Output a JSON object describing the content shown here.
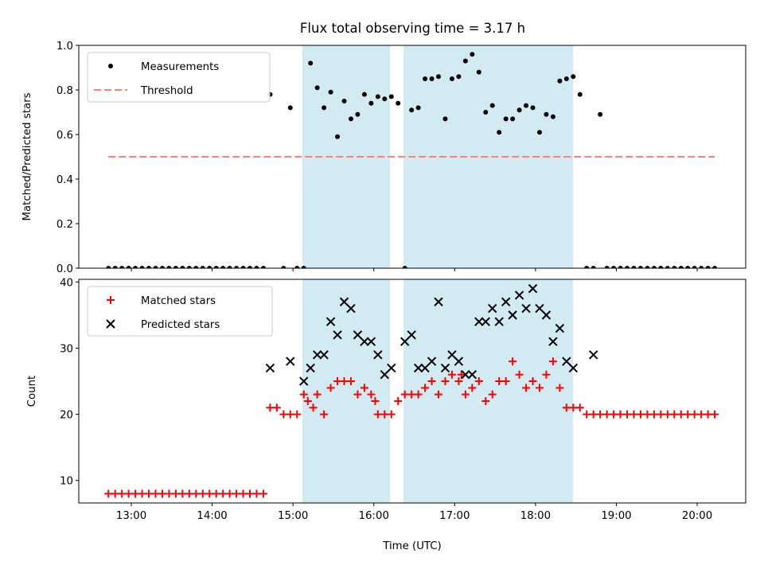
{
  "figure_title": "Flux total observing time = 3.17 h",
  "colors": {
    "shade": "#add8e6",
    "matched": "#ff0000",
    "predicted": "#000000",
    "threshold": "#ff7f7f",
    "measurement": "#000000"
  },
  "chart_data": [
    {
      "type": "scatter",
      "title": "Flux total observing time = 3.17 h",
      "xlabel": "",
      "ylabel": "Matched/Predicted stars",
      "xlim": [
        "12:21",
        "20:36"
      ],
      "ylim": [
        0.0,
        1.0
      ],
      "yticks": [
        "0.0",
        "0.2",
        "0.4",
        "0.6",
        "0.8",
        "1.0"
      ],
      "legend_location": "upper-left",
      "shaded_intervals": [
        [
          "15:07",
          "16:12"
        ],
        [
          "16:22",
          "18:28"
        ]
      ],
      "series": [
        {
          "name": "Measurements",
          "marker": "dot",
          "x": [
            "12:43",
            "12:48",
            "12:53",
            "12:58",
            "13:03",
            "13:08",
            "13:13",
            "13:18",
            "13:23",
            "13:28",
            "13:33",
            "13:38",
            "13:43",
            "13:48",
            "13:53",
            "13:58",
            "14:03",
            "14:08",
            "14:13",
            "14:18",
            "14:23",
            "14:28",
            "14:33",
            "14:38",
            "14:43",
            "14:53",
            "14:58",
            "15:03",
            "15:08",
            "15:13",
            "15:18",
            "15:23",
            "15:28",
            "15:33",
            "15:38",
            "15:43",
            "15:48",
            "15:53",
            "15:58",
            "16:03",
            "16:08",
            "16:13",
            "16:18",
            "16:23",
            "16:28",
            "16:33",
            "16:38",
            "16:43",
            "16:48",
            "16:53",
            "16:58",
            "17:03",
            "17:08",
            "17:13",
            "17:18",
            "17:23",
            "17:28",
            "17:33",
            "17:38",
            "17:43",
            "17:48",
            "17:53",
            "17:58",
            "18:03",
            "18:08",
            "18:13",
            "18:18",
            "18:23",
            "18:28",
            "18:33",
            "18:38",
            "18:43",
            "18:48",
            "18:53",
            "18:58",
            "19:03",
            "19:08",
            "19:13",
            "19:18",
            "19:23",
            "19:28",
            "19:33",
            "19:38",
            "19:43",
            "19:48",
            "19:53",
            "19:58",
            "20:03",
            "20:08",
            "20:13"
          ],
          "y": [
            0,
            0,
            0,
            0,
            0,
            0,
            0,
            0,
            0,
            0,
            0,
            0,
            0,
            0,
            0,
            0,
            0,
            0,
            0,
            0,
            0,
            0,
            0,
            0,
            0.78,
            0,
            0.72,
            0,
            0,
            0.92,
            0.81,
            0.72,
            0.79,
            0.59,
            0.75,
            0.67,
            0.69,
            0.78,
            0.74,
            0.77,
            0.76,
            0.77,
            0.74,
            0,
            0.71,
            0.72,
            0.85,
            0.85,
            0.86,
            0.67,
            0.85,
            0.86,
            0.93,
            0.96,
            0.88,
            0.7,
            0.73,
            0.61,
            0.67,
            0.67,
            0.71,
            0.73,
            0.72,
            0.61,
            0.69,
            0.68,
            0.84,
            0.85,
            0.86,
            0.78,
            0,
            0,
            0.69,
            0,
            0,
            0,
            0,
            0,
            0,
            0,
            0,
            0,
            0,
            0,
            0,
            0,
            0,
            0,
            0,
            0
          ]
        },
        {
          "name": "Threshold",
          "marker": "dashed-line",
          "x": [
            "12:43",
            "20:13"
          ],
          "y": [
            0.5,
            0.5
          ]
        }
      ]
    },
    {
      "type": "scatter",
      "title": "",
      "xlabel": "Time (UTC)",
      "ylabel": "Count",
      "xlim": [
        "12:21",
        "20:36"
      ],
      "ylim": [
        6.6,
        40.4
      ],
      "yticks": [
        "10",
        "20",
        "30",
        "40"
      ],
      "xticks": [
        "13:00",
        "14:00",
        "15:00",
        "16:00",
        "17:00",
        "18:00",
        "19:00",
        "20:00"
      ],
      "legend_location": "upper-left",
      "shaded_intervals": [
        [
          "15:07",
          "16:12"
        ],
        [
          "16:22",
          "18:28"
        ]
      ],
      "series": [
        {
          "name": "Matched stars",
          "marker": "plus",
          "x": [
            "12:43",
            "12:48",
            "12:53",
            "12:58",
            "13:03",
            "13:08",
            "13:13",
            "13:18",
            "13:23",
            "13:28",
            "13:33",
            "13:38",
            "13:43",
            "13:48",
            "13:53",
            "13:58",
            "14:03",
            "14:08",
            "14:13",
            "14:18",
            "14:23",
            "14:28",
            "14:33",
            "14:38",
            "14:43",
            "14:48",
            "14:53",
            "14:58",
            "15:03",
            "15:08",
            "15:11",
            "15:15",
            "15:18",
            "15:23",
            "15:28",
            "15:33",
            "15:38",
            "15:43",
            "15:48",
            "15:53",
            "15:58",
            "16:01",
            "16:03",
            "16:08",
            "16:13",
            "16:18",
            "16:23",
            "16:28",
            "16:33",
            "16:38",
            "16:43",
            "16:48",
            "16:53",
            "16:58",
            "17:03",
            "17:05",
            "17:08",
            "17:13",
            "17:18",
            "17:23",
            "17:28",
            "17:33",
            "17:38",
            "17:43",
            "17:48",
            "17:53",
            "17:58",
            "18:03",
            "18:08",
            "18:13",
            "18:18",
            "18:23",
            "18:28",
            "18:33",
            "18:38",
            "18:43",
            "18:48",
            "18:53",
            "18:58",
            "19:03",
            "19:08",
            "19:13",
            "19:18",
            "19:23",
            "19:28",
            "19:33",
            "19:38",
            "19:43",
            "19:48",
            "19:53",
            "19:58",
            "20:03",
            "20:08",
            "20:13"
          ],
          "y": [
            8,
            8,
            8,
            8,
            8,
            8,
            8,
            8,
            8,
            8,
            8,
            8,
            8,
            8,
            8,
            8,
            8,
            8,
            8,
            8,
            8,
            8,
            8,
            8,
            21,
            21,
            20,
            20,
            20,
            23,
            22,
            21,
            23,
            20,
            24,
            25,
            25,
            25,
            23,
            24,
            23,
            22,
            20,
            20,
            20,
            22,
            23,
            23,
            23,
            24,
            25,
            23,
            25,
            26,
            25,
            26,
            23,
            24,
            25,
            22,
            23,
            25,
            25,
            28,
            26,
            24,
            25,
            24,
            26,
            28,
            24,
            21,
            21,
            21,
            20,
            20,
            20,
            20,
            20,
            20,
            20,
            20,
            20,
            20,
            20,
            20,
            20,
            20,
            20,
            20,
            20,
            20,
            20,
            20
          ]
        },
        {
          "name": "Predicted stars",
          "marker": "cross",
          "x": [
            "14:43",
            "14:58",
            "15:08",
            "15:13",
            "15:18",
            "15:23",
            "15:28",
            "15:33",
            "15:38",
            "15:43",
            "15:48",
            "15:53",
            "15:58",
            "16:03",
            "16:08",
            "16:13",
            "16:23",
            "16:28",
            "16:33",
            "16:38",
            "16:43",
            "16:48",
            "16:53",
            "16:58",
            "17:03",
            "17:08",
            "17:13",
            "17:18",
            "17:23",
            "17:28",
            "17:33",
            "17:38",
            "17:43",
            "17:48",
            "17:53",
            "17:58",
            "18:03",
            "18:08",
            "18:13",
            "18:18",
            "18:23",
            "18:28",
            "18:43"
          ],
          "y": [
            27,
            28,
            25,
            27,
            29,
            29,
            34,
            32,
            37,
            36,
            32,
            31,
            31,
            29,
            26,
            27,
            31,
            32,
            27,
            27,
            28,
            37,
            27,
            29,
            28,
            26,
            26,
            34,
            34,
            36,
            34,
            37,
            35,
            38,
            36,
            39,
            36,
            35,
            31,
            33,
            28,
            27,
            29
          ]
        }
      ]
    }
  ]
}
